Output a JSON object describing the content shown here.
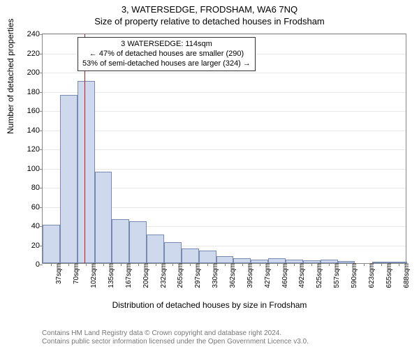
{
  "title": "3, WATERSEDGE, FRODSHAM, WA6 7NQ",
  "subtitle": "Size of property relative to detached houses in Frodsham",
  "ylabel": "Number of detached properties",
  "xlabel": "Distribution of detached houses by size in Frodsham",
  "chart": {
    "type": "histogram",
    "ylim": [
      0,
      240
    ],
    "yticks": [
      0,
      20,
      40,
      60,
      80,
      100,
      120,
      140,
      160,
      180,
      200,
      220,
      240
    ],
    "xtick_labels": [
      "37sqm",
      "70sqm",
      "102sqm",
      "135sqm",
      "167sqm",
      "200sqm",
      "232sqm",
      "265sqm",
      "297sqm",
      "330sqm",
      "362sqm",
      "395sqm",
      "427sqm",
      "460sqm",
      "492sqm",
      "525sqm",
      "557sqm",
      "590sqm",
      "623sqm",
      "655sqm",
      "688sqm"
    ],
    "bar_values": [
      40,
      175,
      190,
      95,
      46,
      44,
      30,
      22,
      15,
      13,
      7,
      5,
      4,
      5,
      4,
      3,
      4,
      2,
      0,
      1,
      1
    ],
    "bar_color": "#cfd9ee",
    "bar_border_color": "#7a89b0",
    "grid_color": "#e8e8e8",
    "axis_color": "#888888",
    "background_color": "#ffffff",
    "marker_x_sqm": 114,
    "x_domain": [
      37,
      704
    ],
    "marker_color": "#dd1111",
    "bar_width_ratio": 1.0
  },
  "annotation": {
    "line1": "3 WATERSEDGE: 114sqm",
    "line2": "← 47% of detached houses are smaller (290)",
    "line3": "53% of semi-detached houses are larger (324) →"
  },
  "footer": {
    "line1": "Contains HM Land Registry data © Crown copyright and database right 2024.",
    "line2": "Contains public sector information licensed under the Open Government Licence v3.0."
  },
  "fonts": {
    "title_size": 13,
    "label_size": 12,
    "tick_size": 11,
    "annot_size": 11,
    "footer_size": 10
  }
}
